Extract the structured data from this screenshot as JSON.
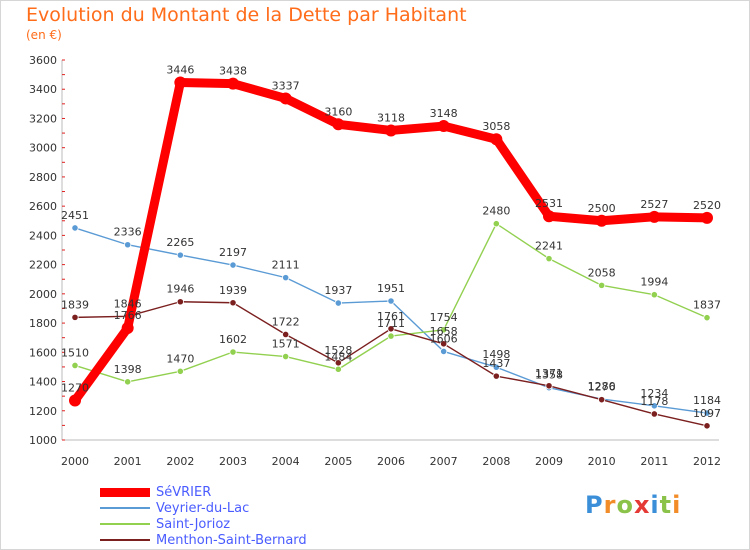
{
  "header": {
    "title": "Evolution du Montant de la Dette par Habitant",
    "subtitle": "(en €)"
  },
  "logo": {
    "text": "Proxiti",
    "colors": [
      "#3b8fd9",
      "#f28c28",
      "#8bc34a",
      "#e53935",
      "#3b8fd9",
      "#8bc34a",
      "#f28c28"
    ]
  },
  "chart_data": {
    "type": "line",
    "title": "Evolution du Montant de la Dette par Habitant",
    "ylabel": "(en €)",
    "xlabel": "",
    "x": [
      "2000",
      "2001",
      "2002",
      "2003",
      "2004",
      "2005",
      "2006",
      "2007",
      "2008",
      "2009",
      "2010",
      "2011",
      "2012"
    ],
    "ylim": [
      1000,
      3600
    ],
    "yticks": [
      1000,
      1200,
      1400,
      1600,
      1800,
      2000,
      2200,
      2400,
      2600,
      2800,
      3000,
      3200,
      3400,
      3600
    ],
    "grid": false,
    "legend": "bottom-left",
    "series": [
      {
        "name": "SéVRIER",
        "color": "#ff0000",
        "values": [
          1270,
          1766,
          3446,
          3438,
          3337,
          3160,
          3118,
          3148,
          3058,
          2531,
          2500,
          2527,
          2520
        ],
        "labels": [
          "1270",
          "",
          "3446",
          "3438",
          "3337",
          "3160",
          "3118",
          "3148",
          "3058",
          "2531",
          "2500",
          "2527",
          "2520"
        ]
      },
      {
        "name": "Veyrier-du-Lac",
        "color": "#5b9bd5",
        "values": [
          2451,
          2336,
          2265,
          2197,
          2111,
          1937,
          1951,
          1606,
          1498,
          1358,
          1280,
          1234,
          1184
        ],
        "labels": [
          "2451",
          "2336",
          "2265",
          "2197",
          "2111",
          "1937",
          "1951",
          "1606",
          "1498",
          "1358",
          "1280",
          "1234",
          "1184"
        ]
      },
      {
        "name": "Saint-Jorioz",
        "color": "#92d050",
        "values": [
          1510,
          1398,
          1470,
          1602,
          1571,
          1484,
          1711,
          1754,
          2480,
          2241,
          2058,
          1994,
          1837
        ],
        "labels": [
          "1510",
          "1398",
          "1470",
          "1602",
          "1571",
          "1484",
          "1711",
          "1754",
          "2480",
          "2241",
          "2058",
          "1994",
          "1837"
        ]
      },
      {
        "name": "Menthon-Saint-Bernard",
        "color": "#7b1f1f",
        "values": [
          1839,
          1846,
          1946,
          1939,
          1722,
          1528,
          1761,
          1658,
          1437,
          1371,
          1276,
          1178,
          1097
        ],
        "labels": [
          "1839",
          "1846",
          "1946",
          "1939",
          "1722",
          "1528",
          "1761",
          "1658",
          "1437",
          "1371",
          "1276",
          "1178",
          "1097"
        ]
      }
    ],
    "extra_labels": [
      {
        "x": "2001",
        "y": 1766,
        "text": "1766"
      }
    ]
  }
}
